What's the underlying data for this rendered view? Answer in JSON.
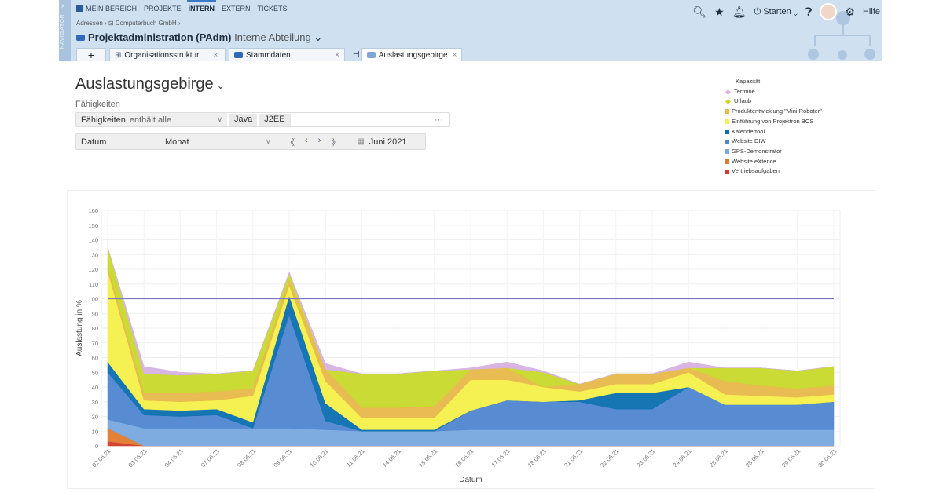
{
  "header": {
    "navigator_label": "NAVIGATOR",
    "top_nav": [
      "MEIN BEREICH",
      "PROJEKTE",
      "INTERN",
      "EXTERN",
      "TICKETS"
    ],
    "active_nav": "INTERN",
    "breadcrumb": "Adressen › ⊡ Computerbuch GmbH ›",
    "project_name": "Projektadministration (PAdm)",
    "project_sub": "Interne Abteilung",
    "tabs": [
      {
        "label": "Organisationsstruktur"
      },
      {
        "label": "Stammdaten"
      },
      {
        "label": "Auslastungsgebirge"
      }
    ],
    "start_label": "Starten",
    "help_label": "Hilfe"
  },
  "page": {
    "title": "Auslastungsgebirge",
    "skills_label": "Fähigkeiten",
    "filter_skills": {
      "name": "Fähigkeiten",
      "operator": "enthält alle",
      "tags": [
        "Java",
        "J2EE"
      ]
    },
    "filter_date": {
      "name": "Datum",
      "unit": "Monat",
      "month": "Juni 2021"
    }
  },
  "colors": {
    "Kapazität": "#7d73c4",
    "Termine": "#d7b1e3",
    "Urlaub": "#c8d92a",
    "Produktentwicklung \"Mini Roboter\"": "#e8b84a",
    "Einführung von Projektron BCS": "#f5f04a",
    "Kalendertool": "#0a6fb0",
    "Website DIW": "#4f86d0",
    "GPS-Demonstrator": "#77a8de",
    "Website eXtence": "#e07a2c",
    "Vertriebsaufgaben": "#d43a2a"
  },
  "chart_data": {
    "type": "area",
    "stacked": true,
    "ylabel": "Auslastung in %",
    "xlabel": "Datum",
    "ylim": [
      0,
      160
    ],
    "yticks": [
      0,
      10,
      20,
      30,
      40,
      50,
      60,
      70,
      80,
      90,
      100,
      110,
      120,
      130,
      140,
      150,
      160
    ],
    "categories": [
      "02.06.21",
      "03.06.21",
      "04.06.21",
      "07.06.21",
      "08.06.21",
      "09.06.21",
      "10.06.21",
      "11.06.21",
      "14.06.21",
      "15.06.21",
      "16.06.21",
      "17.06.21",
      "18.06.21",
      "21.06.21",
      "22.06.21",
      "23.06.21",
      "24.06.21",
      "25.06.21",
      "28.06.21",
      "29.06.21",
      "30.06.21"
    ],
    "series": [
      {
        "name": "Vertriebsaufgaben",
        "values": [
          3,
          0,
          0,
          0,
          0,
          0,
          0,
          0,
          0,
          0,
          0,
          0,
          0,
          0,
          0,
          0,
          0,
          0,
          0,
          0,
          0
        ]
      },
      {
        "name": "Website eXtence",
        "values": [
          9,
          0,
          0,
          0,
          0,
          0,
          0,
          0,
          0,
          0,
          0,
          0,
          0,
          0,
          0,
          0,
          0,
          0,
          0,
          0,
          0
        ]
      },
      {
        "name": "GPS-Demonstrator",
        "values": [
          6,
          12,
          12,
          12,
          12,
          12,
          11,
          10,
          10,
          10,
          11,
          11,
          11,
          11,
          11,
          11,
          11,
          11,
          11,
          11,
          11
        ]
      },
      {
        "name": "Website DIW",
        "values": [
          32,
          9,
          8,
          9,
          0,
          77,
          6,
          0,
          0,
          0,
          13,
          20,
          19,
          19,
          14,
          14,
          29,
          17,
          17,
          17,
          19
        ]
      },
      {
        "name": "Kalendertool",
        "values": [
          7,
          4,
          4,
          4,
          4,
          13,
          12,
          1,
          1,
          1,
          0,
          0,
          0,
          1,
          11,
          11,
          0,
          0,
          0,
          0,
          0
        ]
      },
      {
        "name": "Einführung von Projektron BCS",
        "values": [
          62,
          6,
          6,
          6,
          18,
          7,
          15,
          8,
          8,
          8,
          21,
          14,
          10,
          6,
          6,
          6,
          10,
          7,
          6,
          5,
          5
        ]
      },
      {
        "name": "Produktentwicklung \"Mini Roboter\"",
        "values": [
          3,
          5,
          6,
          6,
          5,
          4,
          8,
          7,
          7,
          8,
          7,
          8,
          0,
          5,
          7,
          7,
          3,
          9,
          7,
          6,
          6
        ]
      },
      {
        "name": "Urlaub",
        "values": [
          13,
          13,
          12,
          12,
          12,
          4,
          0,
          23,
          23,
          24,
          0,
          0,
          10,
          0,
          0,
          0,
          0,
          9,
          12,
          12,
          13
        ]
      },
      {
        "name": "Termine",
        "values": [
          0,
          5,
          2,
          0,
          0,
          1,
          4,
          0,
          0,
          0,
          1,
          4,
          1,
          0,
          0,
          0,
          4,
          0,
          0,
          0,
          0
        ]
      }
    ],
    "capacity": {
      "name": "Kapazität",
      "value": 100
    },
    "legend_position": "top-right",
    "legend_order": [
      "Kapazität",
      "Termine",
      "Urlaub",
      "Produktentwicklung \"Mini Roboter\"",
      "Einführung von Projektron BCS",
      "Kalendertool",
      "Website DIW",
      "GPS-Demonstrator",
      "Website eXtence",
      "Vertriebsaufgaben"
    ]
  }
}
